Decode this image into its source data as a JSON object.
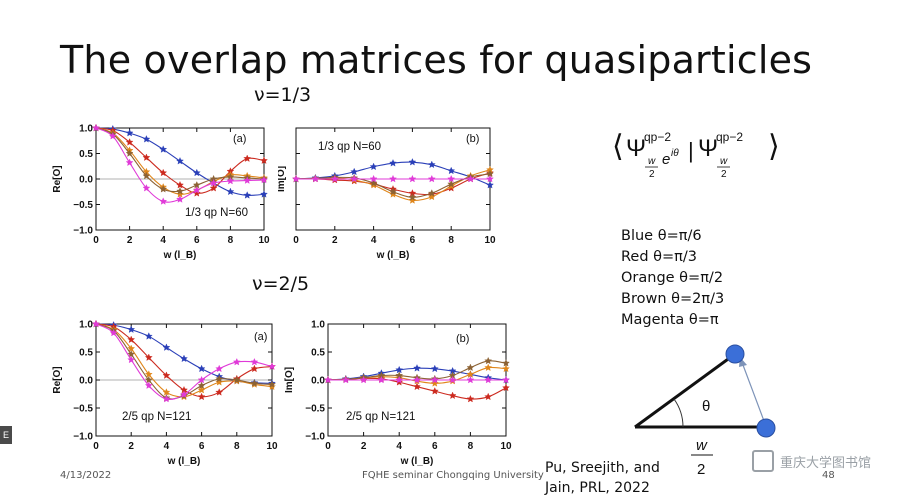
{
  "slide": {
    "title": "The overlap matrices for quasiparticles",
    "nu13": "ν=1/3",
    "nu25": "ν=2/5"
  },
  "formula": {
    "bra_symbol": "Ψ",
    "bra_sup": "qp−2",
    "bra_sub_num": "w",
    "bra_sub_den": "2",
    "phase": "e",
    "phase_exp": "iθ",
    "ket_symbol": "Ψ",
    "ket_sup": "qp−2",
    "ket_sub_num": "w",
    "ket_sub_den": "2"
  },
  "legend": {
    "blue": "Blue θ=π/6",
    "red": "Red θ=π/3",
    "orange": "Orange θ=π/2",
    "brown": "Brown θ=2π/3",
    "magenta": "Magenta θ=π"
  },
  "diagram": {
    "angle_label": "θ",
    "w_num": "w",
    "w_den": "2",
    "colors": {
      "line": "#111111",
      "dot": "#3b6fd8",
      "arrow": "#7d93b8"
    }
  },
  "footer": {
    "date": "4/13/2022",
    "center": "FQHE seminar Chongqing University",
    "page": "48",
    "citation_line1": "Pu, Sreejith, and",
    "citation_line2": "Jain, PRL, 2022",
    "watermark": "重庆大学图书馆",
    "edge_tab": "E"
  },
  "series_colors": {
    "blue": "#2a3fb8",
    "red": "#cc2a1f",
    "orange": "#e0861a",
    "brown": "#8c6234",
    "magenta": "#e03ad8"
  },
  "chart_data": [
    {
      "type": "line",
      "panel": "(a)",
      "annotation": "1/3 qp N=60",
      "xlabel": "w (l_B)",
      "ylabel": "Re[O]",
      "xlim": [
        0,
        10
      ],
      "ylim": [
        -1.0,
        1.0
      ],
      "xticks": [
        "0",
        "2",
        "4",
        "6",
        "8",
        "10"
      ],
      "yticks": [
        "1.0",
        "0.5",
        "0.0",
        "−0.5",
        "−1.0"
      ],
      "x": [
        0,
        1,
        2,
        3,
        4,
        5,
        6,
        7,
        8,
        9,
        10
      ],
      "series": [
        {
          "color": "blue",
          "values": [
            1.0,
            0.98,
            0.9,
            0.78,
            0.58,
            0.35,
            0.12,
            -0.08,
            -0.25,
            -0.32,
            -0.3
          ]
        },
        {
          "color": "red",
          "values": [
            1.0,
            0.95,
            0.72,
            0.42,
            0.12,
            -0.12,
            -0.28,
            -0.18,
            0.15,
            0.4,
            0.36
          ]
        },
        {
          "color": "orange",
          "values": [
            1.0,
            0.9,
            0.56,
            0.14,
            -0.16,
            -0.3,
            -0.22,
            -0.05,
            0.08,
            0.06,
            0.02
          ]
        },
        {
          "color": "brown",
          "values": [
            1.0,
            0.88,
            0.5,
            0.06,
            -0.2,
            -0.24,
            -0.12,
            0.0,
            0.04,
            0.02,
            0.0
          ]
        },
        {
          "color": "magenta",
          "values": [
            1.0,
            0.84,
            0.32,
            -0.18,
            -0.44,
            -0.4,
            -0.22,
            -0.08,
            -0.04,
            -0.03,
            -0.02
          ]
        }
      ]
    },
    {
      "type": "line",
      "panel": "(b)",
      "annotation": "1/3 qp N=60",
      "xlabel": "w (l_B)",
      "ylabel": "Im[O]",
      "xlim": [
        0,
        10
      ],
      "ylim": [
        -1.0,
        1.0
      ],
      "xticks": [
        "0",
        "2",
        "4",
        "6",
        "8",
        "10"
      ],
      "yticks": [
        "1.0",
        "0.5",
        "0.0",
        "−0.5",
        "−1.0"
      ],
      "x": [
        0,
        1,
        2,
        3,
        4,
        5,
        6,
        7,
        8,
        9,
        10
      ],
      "series": [
        {
          "color": "blue",
          "values": [
            0.0,
            0.02,
            0.06,
            0.14,
            0.24,
            0.31,
            0.33,
            0.28,
            0.16,
            0.04,
            -0.12
          ]
        },
        {
          "color": "red",
          "values": [
            0.0,
            0.0,
            -0.02,
            -0.04,
            -0.1,
            -0.2,
            -0.28,
            -0.3,
            -0.18,
            0.0,
            0.12
          ]
        },
        {
          "color": "orange",
          "values": [
            0.0,
            0.01,
            0.02,
            -0.02,
            -0.12,
            -0.3,
            -0.42,
            -0.35,
            -0.14,
            0.06,
            0.18
          ]
        },
        {
          "color": "brown",
          "values": [
            0.0,
            0.01,
            0.03,
            0.02,
            -0.08,
            -0.25,
            -0.36,
            -0.28,
            -0.1,
            0.04,
            0.1
          ]
        },
        {
          "color": "magenta",
          "values": [
            0.0,
            0.0,
            0.0,
            0.0,
            0.0,
            0.0,
            0.0,
            0.0,
            0.0,
            0.0,
            0.0
          ]
        }
      ]
    },
    {
      "type": "line",
      "panel": "(a)",
      "annotation": "2/5 qp N=121",
      "xlabel": "w (l_B)",
      "ylabel": "Re[O]",
      "xlim": [
        0,
        10
      ],
      "ylim": [
        -1.0,
        1.0
      ],
      "xticks": [
        "0",
        "2",
        "4",
        "6",
        "8",
        "10"
      ],
      "yticks": [
        "1.0",
        "0.5",
        "0.0",
        "−0.5",
        "−1.0"
      ],
      "x": [
        0,
        1,
        2,
        3,
        4,
        5,
        6,
        7,
        8,
        9,
        10
      ],
      "series": [
        {
          "color": "blue",
          "values": [
            1.0,
            0.98,
            0.9,
            0.78,
            0.58,
            0.38,
            0.2,
            0.06,
            -0.02,
            -0.05,
            -0.06
          ]
        },
        {
          "color": "red",
          "values": [
            1.0,
            0.95,
            0.72,
            0.4,
            0.08,
            -0.18,
            -0.3,
            -0.22,
            0.02,
            0.2,
            0.24
          ]
        },
        {
          "color": "orange",
          "values": [
            1.0,
            0.9,
            0.56,
            0.1,
            -0.22,
            -0.3,
            -0.18,
            -0.04,
            -0.02,
            -0.08,
            -0.12
          ]
        },
        {
          "color": "brown",
          "values": [
            1.0,
            0.88,
            0.46,
            0.0,
            -0.32,
            -0.28,
            -0.1,
            0.02,
            0.0,
            -0.06,
            -0.08
          ]
        },
        {
          "color": "magenta",
          "values": [
            1.0,
            0.84,
            0.36,
            -0.1,
            -0.34,
            -0.26,
            0.0,
            0.2,
            0.32,
            0.32,
            0.24
          ]
        }
      ]
    },
    {
      "type": "line",
      "panel": "(b)",
      "annotation": "2/5 qp N=121",
      "xlabel": "w (l_B)",
      "ylabel": "Im[O]",
      "xlim": [
        0,
        10
      ],
      "ylim": [
        -1.0,
        1.0
      ],
      "xticks": [
        "0",
        "2",
        "4",
        "6",
        "8",
        "10"
      ],
      "yticks": [
        "1.0",
        "0.5",
        "0.0",
        "−0.5",
        "−1.0"
      ],
      "x": [
        0,
        1,
        2,
        3,
        4,
        5,
        6,
        7,
        8,
        9,
        10
      ],
      "series": [
        {
          "color": "blue",
          "values": [
            0.0,
            0.02,
            0.06,
            0.12,
            0.18,
            0.21,
            0.2,
            0.16,
            0.1,
            0.04,
            0.0
          ]
        },
        {
          "color": "red",
          "values": [
            0.0,
            0.01,
            0.03,
            0.02,
            -0.04,
            -0.12,
            -0.2,
            -0.28,
            -0.34,
            -0.3,
            -0.14
          ]
        },
        {
          "color": "orange",
          "values": [
            0.0,
            0.01,
            0.04,
            0.06,
            0.04,
            -0.02,
            -0.06,
            -0.02,
            0.1,
            0.22,
            0.2
          ]
        },
        {
          "color": "brown",
          "values": [
            0.0,
            0.01,
            0.04,
            0.08,
            0.08,
            0.04,
            0.02,
            0.08,
            0.22,
            0.34,
            0.3
          ]
        },
        {
          "color": "magenta",
          "values": [
            0.0,
            0.0,
            0.0,
            0.0,
            0.0,
            0.0,
            0.0,
            0.0,
            0.0,
            0.0,
            0.0
          ]
        }
      ]
    }
  ]
}
